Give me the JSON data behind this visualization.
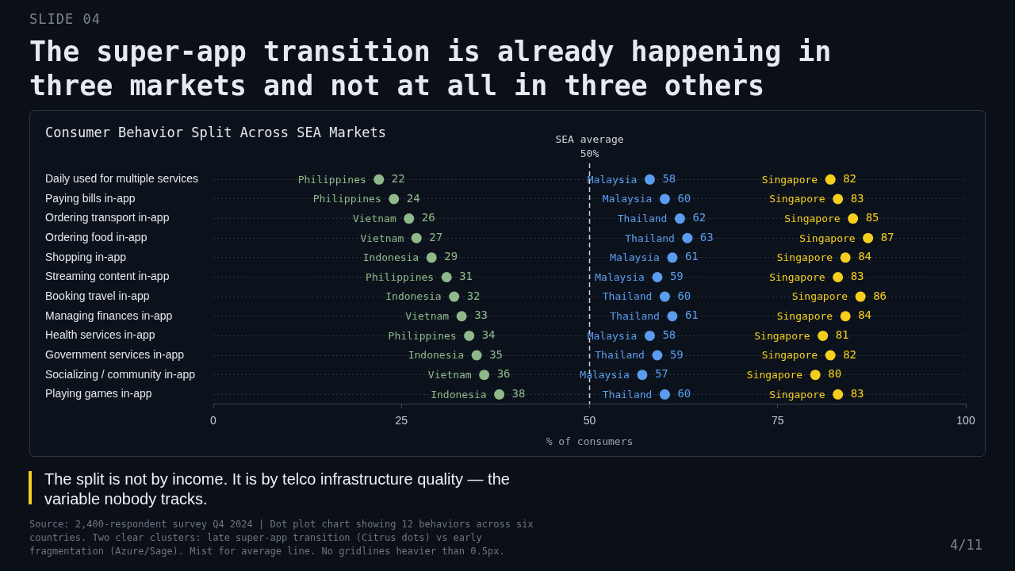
{
  "chart_data": {
    "type": "scatter",
    "orientation": "horizontal",
    "title": "The super-app transition is already happening in three markets and not at all in three others",
    "subtitle": "Consumer Behavior Split Across SEA Markets",
    "xlabel": "% of consumers",
    "categories": [
      "Daily used for multiple services",
      "Paying bills in-app",
      "Ordering transport in-app",
      "Ordering food in-app",
      "Shopping in-app",
      "Streaming content in-app",
      "Booking travel in-app",
      "Managing finances in-app",
      "Health services in-app",
      "Government services in-app",
      "Socializing / community in-app",
      "Playing games in-app"
    ],
    "series": [
      {
        "name": "Philippines",
        "color": "#8fb98b",
        "values": [
          22,
          24,
          null,
          null,
          null,
          31,
          null,
          null,
          34,
          null,
          null,
          null
        ]
      },
      {
        "name": "Vietnam",
        "color": "#8fb98b",
        "values": [
          null,
          null,
          26,
          27,
          null,
          null,
          null,
          33,
          null,
          null,
          36,
          null
        ]
      },
      {
        "name": "Indonesia",
        "color": "#8fb98b",
        "values": [
          null,
          null,
          null,
          null,
          29,
          null,
          32,
          null,
          null,
          35,
          null,
          38
        ]
      },
      {
        "name": "Malaysia",
        "color": "#5b9cf0",
        "values": [
          58,
          60,
          null,
          null,
          61,
          59,
          null,
          null,
          58,
          null,
          57,
          null
        ]
      },
      {
        "name": "Thailand",
        "color": "#5b9cf0",
        "values": [
          null,
          null,
          62,
          63,
          null,
          null,
          60,
          61,
          null,
          59,
          null,
          60
        ]
      },
      {
        "name": "Singapore",
        "color": "#f5cf1d",
        "values": [
          82,
          83,
          85,
          87,
          84,
          83,
          86,
          84,
          81,
          82,
          80,
          83
        ]
      }
    ],
    "xlim": [
      0,
      100
    ],
    "xticks": [
      0,
      25,
      50,
      75,
      100
    ],
    "ref_lines": [
      {
        "axis": "x",
        "value": 50,
        "label": "SEA average 50%",
        "color": "#d0d4da",
        "line_style": "dashed"
      }
    ],
    "data_labels": true,
    "grid": "y",
    "legend": false,
    "marker": "circle",
    "annotations": [
      "SLIDE 04",
      "The split is not by income. It is by telco infrastructure quality — the variable nobody tracks.",
      "Source: 2,400-respondent survey Q4 2024 | Dot plot chart showing 12 behaviors across six countries. Two clear clusters: late super-app transition (Citrus dots) vs early fragmentation (Azure/Sage). Mist for average line. No gridlines heavier than 0.5px.",
      "4/11"
    ]
  }
}
